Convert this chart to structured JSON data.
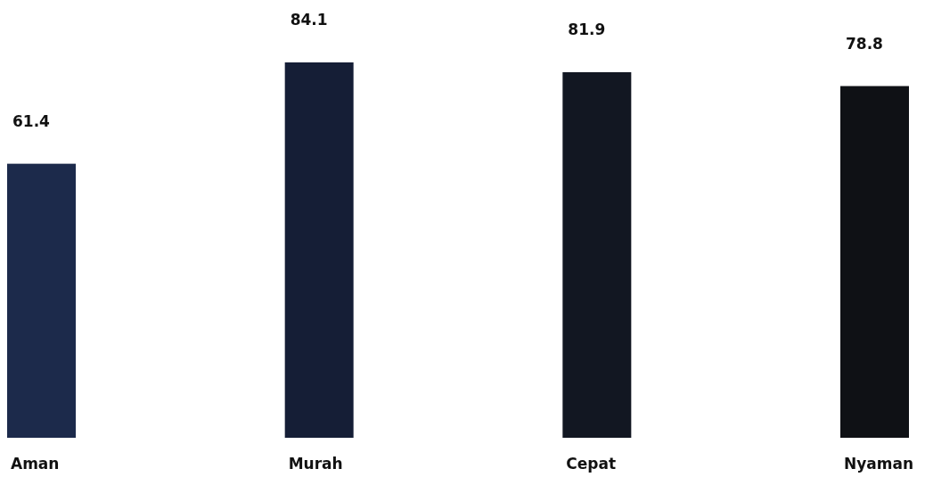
{
  "chart_data": {
    "type": "bar",
    "categories": [
      "Aman",
      "Murah",
      "Cepat",
      "Nyaman"
    ],
    "values": [
      61.4,
      84.1,
      81.9,
      78.8
    ],
    "colors": [
      "#1c2a4b",
      "#151e36",
      "#121722",
      "#0f1115"
    ],
    "data_labels": true
  }
}
